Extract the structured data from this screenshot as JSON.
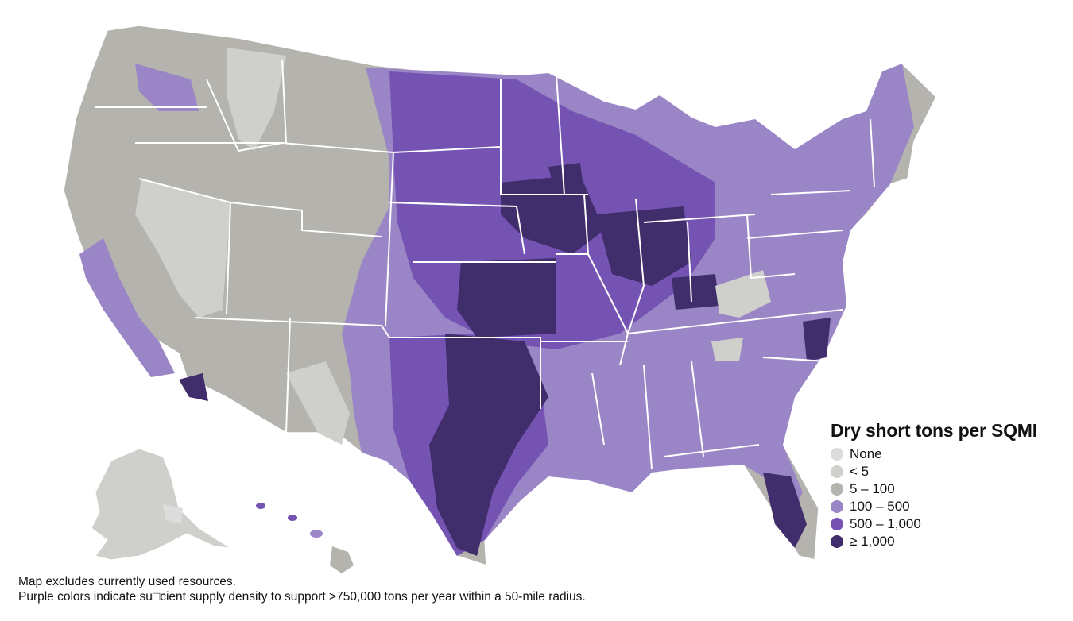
{
  "legend": {
    "title": "Dry short tons per SQMI",
    "items": [
      {
        "label": "None",
        "color": "#dcdcdc"
      },
      {
        "label": "< 5",
        "color": "#cfcfcb"
      },
      {
        "label": "5 – 100",
        "color": "#b5b3ae"
      },
      {
        "label": "100 – 500",
        "color": "#9a86c6"
      },
      {
        "label": "500 – 1,000",
        "color": "#7553b2"
      },
      {
        "label": "≥ 1,000",
        "color": "#402d6b"
      }
    ]
  },
  "footnotes": {
    "line1": "Map excludes currently used resources.",
    "line2": "Purple colors indicate su□cient supply density to support >750,000 tons per year within a 50-mile radius."
  },
  "map": {
    "colors": {
      "none": "#dcdcdc",
      "lt5": "#cfcfcb",
      "low": "#b5b3ae",
      "mid": "#9a86c6",
      "high": "#7553b2",
      "top": "#402d6b",
      "border": "#ffffff"
    }
  }
}
